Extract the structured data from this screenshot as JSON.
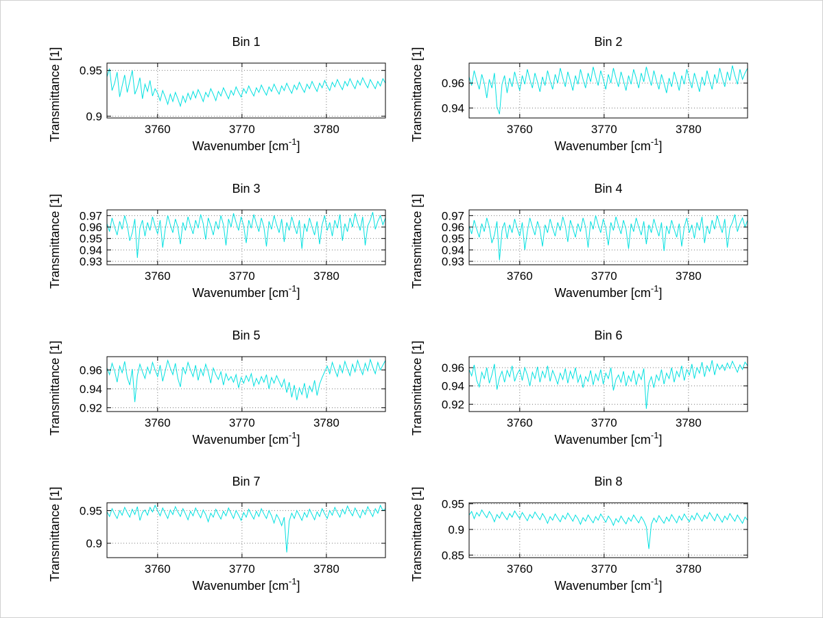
{
  "figure": {
    "background": "#ffffff",
    "border_color": "#cfcfcf"
  },
  "style": {
    "line_color": "#00E0E0",
    "grid_color": "#777777",
    "axis_color": "#000000"
  },
  "labels": {
    "xlabel_pre": "Wavenumber [cm",
    "xlabel_sup": "-1",
    "xlabel_post": "]",
    "ylabel": "Transmittance [1]"
  },
  "chart_data": [
    {
      "type": "line",
      "title": "Bin 1",
      "xlabel": "Wavenumber [cm⁻¹]",
      "ylabel": "Transmittance [1]",
      "xlim": [
        3754,
        3787
      ],
      "ylim": [
        0.898,
        0.958
      ],
      "xticks": [
        3760,
        3770,
        3780
      ],
      "yticks": [
        0.9,
        0.95
      ],
      "grid": true,
      "x_start": 3754,
      "x_step": 0.3,
      "values": [
        0.943,
        0.952,
        0.928,
        0.936,
        0.948,
        0.921,
        0.933,
        0.945,
        0.926,
        0.938,
        0.95,
        0.924,
        0.931,
        0.942,
        0.919,
        0.935,
        0.927,
        0.939,
        0.922,
        0.93,
        0.925,
        0.917,
        0.928,
        0.921,
        0.913,
        0.924,
        0.916,
        0.926,
        0.919,
        0.911,
        0.922,
        0.915,
        0.925,
        0.918,
        0.927,
        0.92,
        0.929,
        0.923,
        0.916,
        0.926,
        0.921,
        0.93,
        0.924,
        0.917,
        0.927,
        0.922,
        0.931,
        0.925,
        0.919,
        0.928,
        0.923,
        0.932,
        0.926,
        0.921,
        0.93,
        0.925,
        0.933,
        0.927,
        0.922,
        0.931,
        0.926,
        0.934,
        0.928,
        0.923,
        0.932,
        0.927,
        0.935,
        0.929,
        0.924,
        0.933,
        0.928,
        0.936,
        0.93,
        0.925,
        0.934,
        0.929,
        0.937,
        0.931,
        0.926,
        0.935,
        0.93,
        0.938,
        0.932,
        0.927,
        0.936,
        0.931,
        0.939,
        0.933,
        0.928,
        0.937,
        0.932,
        0.94,
        0.934,
        0.929,
        0.938,
        0.933,
        0.941,
        0.935,
        0.93,
        0.939,
        0.934,
        0.942,
        0.936,
        0.931,
        0.94,
        0.935,
        0.93,
        0.938,
        0.933,
        0.941,
        0.936
      ]
    },
    {
      "type": "line",
      "title": "Bin 2",
      "xlabel": "Wavenumber [cm⁻¹]",
      "ylabel": "Transmittance [1]",
      "xlim": [
        3754,
        3787
      ],
      "ylim": [
        0.932,
        0.976
      ],
      "xticks": [
        3760,
        3770,
        3780
      ],
      "yticks": [
        0.94,
        0.96
      ],
      "grid": true,
      "x_start": 3754,
      "x_step": 0.3,
      "values": [
        0.965,
        0.958,
        0.97,
        0.962,
        0.955,
        0.967,
        0.96,
        0.948,
        0.963,
        0.956,
        0.968,
        0.941,
        0.935,
        0.959,
        0.966,
        0.952,
        0.964,
        0.957,
        0.969,
        0.961,
        0.954,
        0.966,
        0.959,
        0.971,
        0.963,
        0.956,
        0.968,
        0.961,
        0.953,
        0.965,
        0.958,
        0.97,
        0.962,
        0.955,
        0.967,
        0.96,
        0.972,
        0.964,
        0.957,
        0.969,
        0.962,
        0.954,
        0.966,
        0.959,
        0.971,
        0.963,
        0.956,
        0.968,
        0.961,
        0.973,
        0.965,
        0.958,
        0.97,
        0.963,
        0.955,
        0.967,
        0.96,
        0.972,
        0.964,
        0.957,
        0.969,
        0.962,
        0.954,
        0.966,
        0.959,
        0.971,
        0.964,
        0.956,
        0.968,
        0.961,
        0.973,
        0.965,
        0.958,
        0.97,
        0.962,
        0.955,
        0.967,
        0.96,
        0.952,
        0.964,
        0.957,
        0.969,
        0.962,
        0.954,
        0.966,
        0.959,
        0.971,
        0.963,
        0.956,
        0.968,
        0.961,
        0.953,
        0.965,
        0.958,
        0.97,
        0.962,
        0.955,
        0.967,
        0.96,
        0.972,
        0.964,
        0.957,
        0.969,
        0.962,
        0.974,
        0.966,
        0.959,
        0.971,
        0.963,
        0.968,
        0.972
      ]
    },
    {
      "type": "line",
      "title": "Bin 3",
      "xlabel": "Wavenumber [cm⁻¹]",
      "ylabel": "Transmittance [1]",
      "xlim": [
        3754,
        3787
      ],
      "ylim": [
        0.927,
        0.975
      ],
      "xticks": [
        3760,
        3770,
        3780
      ],
      "yticks": [
        0.93,
        0.94,
        0.95,
        0.96,
        0.97
      ],
      "grid": true,
      "x_start": 3754,
      "x_step": 0.3,
      "values": [
        0.963,
        0.956,
        0.968,
        0.96,
        0.953,
        0.965,
        0.958,
        0.97,
        0.962,
        0.948,
        0.955,
        0.967,
        0.933,
        0.959,
        0.966,
        0.952,
        0.964,
        0.957,
        0.969,
        0.961,
        0.954,
        0.966,
        0.942,
        0.958,
        0.97,
        0.962,
        0.955,
        0.967,
        0.96,
        0.945,
        0.964,
        0.957,
        0.969,
        0.961,
        0.954,
        0.966,
        0.959,
        0.971,
        0.963,
        0.949,
        0.968,
        0.961,
        0.953,
        0.965,
        0.958,
        0.97,
        0.962,
        0.944,
        0.967,
        0.96,
        0.972,
        0.964,
        0.957,
        0.969,
        0.961,
        0.946,
        0.966,
        0.959,
        0.971,
        0.963,
        0.956,
        0.968,
        0.96,
        0.943,
        0.965,
        0.958,
        0.97,
        0.962,
        0.955,
        0.967,
        0.947,
        0.964,
        0.957,
        0.969,
        0.961,
        0.954,
        0.966,
        0.941,
        0.963,
        0.956,
        0.968,
        0.96,
        0.953,
        0.965,
        0.945,
        0.962,
        0.97,
        0.957,
        0.964,
        0.952,
        0.966,
        0.959,
        0.971,
        0.948,
        0.963,
        0.956,
        0.968,
        0.96,
        0.972,
        0.964,
        0.957,
        0.969,
        0.944,
        0.961,
        0.966,
        0.973,
        0.958,
        0.965,
        0.97,
        0.962,
        0.968
      ]
    },
    {
      "type": "line",
      "title": "Bin 4",
      "xlabel": "Wavenumber [cm⁻¹]",
      "ylabel": "Transmittance [1]",
      "xlim": [
        3754,
        3787
      ],
      "ylim": [
        0.927,
        0.975
      ],
      "xticks": [
        3760,
        3770,
        3780
      ],
      "yticks": [
        0.93,
        0.94,
        0.95,
        0.96,
        0.97
      ],
      "grid": true,
      "x_start": 3754,
      "x_step": 0.3,
      "values": [
        0.961,
        0.954,
        0.966,
        0.958,
        0.951,
        0.963,
        0.956,
        0.968,
        0.96,
        0.946,
        0.953,
        0.965,
        0.931,
        0.957,
        0.964,
        0.95,
        0.962,
        0.955,
        0.967,
        0.959,
        0.952,
        0.964,
        0.94,
        0.956,
        0.968,
        0.96,
        0.953,
        0.965,
        0.958,
        0.943,
        0.962,
        0.955,
        0.967,
        0.959,
        0.952,
        0.964,
        0.957,
        0.969,
        0.961,
        0.947,
        0.966,
        0.959,
        0.951,
        0.963,
        0.956,
        0.968,
        0.96,
        0.942,
        0.965,
        0.958,
        0.97,
        0.962,
        0.955,
        0.967,
        0.959,
        0.944,
        0.964,
        0.957,
        0.969,
        0.961,
        0.954,
        0.966,
        0.958,
        0.941,
        0.963,
        0.956,
        0.968,
        0.96,
        0.953,
        0.965,
        0.945,
        0.962,
        0.955,
        0.967,
        0.959,
        0.952,
        0.964,
        0.939,
        0.961,
        0.954,
        0.966,
        0.958,
        0.951,
        0.963,
        0.943,
        0.96,
        0.968,
        0.955,
        0.962,
        0.95,
        0.964,
        0.957,
        0.969,
        0.946,
        0.961,
        0.954,
        0.966,
        0.958,
        0.97,
        0.962,
        0.955,
        0.967,
        0.942,
        0.959,
        0.964,
        0.971,
        0.956,
        0.963,
        0.968,
        0.96,
        0.966
      ]
    },
    {
      "type": "line",
      "title": "Bin 5",
      "xlabel": "Wavenumber [cm⁻¹]",
      "ylabel": "Transmittance [1]",
      "xlim": [
        3754,
        3787
      ],
      "ylim": [
        0.916,
        0.974
      ],
      "xticks": [
        3760,
        3770,
        3780
      ],
      "yticks": [
        0.92,
        0.94,
        0.96
      ],
      "grid": true,
      "x_start": 3754,
      "x_step": 0.3,
      "values": [
        0.962,
        0.955,
        0.967,
        0.959,
        0.947,
        0.964,
        0.957,
        0.969,
        0.952,
        0.944,
        0.961,
        0.926,
        0.954,
        0.966,
        0.958,
        0.951,
        0.963,
        0.956,
        0.968,
        0.96,
        0.953,
        0.965,
        0.948,
        0.959,
        0.97,
        0.962,
        0.955,
        0.967,
        0.951,
        0.942,
        0.963,
        0.956,
        0.968,
        0.96,
        0.953,
        0.965,
        0.949,
        0.961,
        0.954,
        0.966,
        0.958,
        0.946,
        0.962,
        0.955,
        0.95,
        0.958,
        0.944,
        0.956,
        0.949,
        0.953,
        0.947,
        0.955,
        0.941,
        0.952,
        0.946,
        0.954,
        0.948,
        0.956,
        0.943,
        0.951,
        0.945,
        0.953,
        0.947,
        0.955,
        0.94,
        0.952,
        0.946,
        0.954,
        0.948,
        0.942,
        0.95,
        0.936,
        0.947,
        0.931,
        0.944,
        0.928,
        0.941,
        0.934,
        0.946,
        0.93,
        0.943,
        0.937,
        0.949,
        0.933,
        0.945,
        0.952,
        0.958,
        0.964,
        0.956,
        0.968,
        0.96,
        0.953,
        0.965,
        0.957,
        0.969,
        0.961,
        0.954,
        0.966,
        0.958,
        0.97,
        0.962,
        0.955,
        0.967,
        0.959,
        0.971,
        0.963,
        0.956,
        0.968,
        0.96,
        0.965,
        0.97
      ]
    },
    {
      "type": "line",
      "title": "Bin 6",
      "xlabel": "Wavenumber [cm⁻¹]",
      "ylabel": "Transmittance [1]",
      "xlim": [
        3754,
        3787
      ],
      "ylim": [
        0.912,
        0.972
      ],
      "xticks": [
        3760,
        3770,
        3780
      ],
      "yticks": [
        0.92,
        0.94,
        0.96
      ],
      "grid": true,
      "x_start": 3754,
      "x_step": 0.3,
      "values": [
        0.958,
        0.951,
        0.963,
        0.946,
        0.939,
        0.955,
        0.948,
        0.96,
        0.943,
        0.952,
        0.964,
        0.936,
        0.949,
        0.956,
        0.944,
        0.957,
        0.95,
        0.962,
        0.945,
        0.953,
        0.958,
        0.946,
        0.96,
        0.952,
        0.94,
        0.955,
        0.948,
        0.961,
        0.944,
        0.956,
        0.949,
        0.962,
        0.945,
        0.957,
        0.95,
        0.942,
        0.954,
        0.947,
        0.959,
        0.943,
        0.956,
        0.948,
        0.96,
        0.944,
        0.952,
        0.938,
        0.95,
        0.945,
        0.957,
        0.941,
        0.953,
        0.946,
        0.958,
        0.942,
        0.954,
        0.948,
        0.96,
        0.935,
        0.947,
        0.952,
        0.944,
        0.956,
        0.94,
        0.951,
        0.945,
        0.957,
        0.941,
        0.953,
        0.947,
        0.959,
        0.915,
        0.943,
        0.95,
        0.938,
        0.952,
        0.946,
        0.958,
        0.942,
        0.954,
        0.948,
        0.96,
        0.944,
        0.956,
        0.95,
        0.962,
        0.946,
        0.958,
        0.952,
        0.964,
        0.948,
        0.96,
        0.954,
        0.966,
        0.95,
        0.962,
        0.956,
        0.968,
        0.952,
        0.964,
        0.958,
        0.963,
        0.957,
        0.965,
        0.959,
        0.967,
        0.961,
        0.955,
        0.963,
        0.958,
        0.966,
        0.962
      ]
    },
    {
      "type": "line",
      "title": "Bin 7",
      "xlabel": "Wavenumber [cm⁻¹]",
      "ylabel": "Transmittance [1]",
      "xlim": [
        3754,
        3787
      ],
      "ylim": [
        0.878,
        0.962
      ],
      "xticks": [
        3760,
        3770,
        3780
      ],
      "yticks": [
        0.9,
        0.95
      ],
      "grid": true,
      "x_start": 3754,
      "x_step": 0.3,
      "values": [
        0.948,
        0.941,
        0.953,
        0.945,
        0.938,
        0.95,
        0.943,
        0.955,
        0.947,
        0.94,
        0.952,
        0.944,
        0.956,
        0.935,
        0.947,
        0.951,
        0.943,
        0.955,
        0.948,
        0.958,
        0.95,
        0.942,
        0.954,
        0.946,
        0.938,
        0.951,
        0.944,
        0.956,
        0.948,
        0.941,
        0.953,
        0.945,
        0.936,
        0.949,
        0.942,
        0.954,
        0.946,
        0.939,
        0.951,
        0.944,
        0.933,
        0.946,
        0.94,
        0.952,
        0.944,
        0.937,
        0.949,
        0.942,
        0.954,
        0.946,
        0.938,
        0.95,
        0.943,
        0.935,
        0.947,
        0.94,
        0.952,
        0.944,
        0.937,
        0.949,
        0.941,
        0.953,
        0.945,
        0.938,
        0.95,
        0.942,
        0.931,
        0.944,
        0.937,
        0.927,
        0.94,
        0.886,
        0.934,
        0.946,
        0.938,
        0.95,
        0.943,
        0.935,
        0.947,
        0.94,
        0.952,
        0.944,
        0.936,
        0.948,
        0.941,
        0.953,
        0.945,
        0.938,
        0.95,
        0.943,
        0.955,
        0.947,
        0.94,
        0.952,
        0.945,
        0.957,
        0.949,
        0.942,
        0.954,
        0.946,
        0.939,
        0.951,
        0.944,
        0.956,
        0.948,
        0.941,
        0.953,
        0.946,
        0.958,
        0.95,
        0.953
      ]
    },
    {
      "type": "line",
      "title": "Bin 8",
      "xlabel": "Wavenumber [cm⁻¹]",
      "ylabel": "Transmittance [1]",
      "xlim": [
        3754,
        3787
      ],
      "ylim": [
        0.845,
        0.952
      ],
      "xticks": [
        3760,
        3770,
        3780
      ],
      "yticks": [
        0.85,
        0.9,
        0.95
      ],
      "grid": true,
      "x_start": 3754,
      "x_step": 0.3,
      "values": [
        0.928,
        0.935,
        0.921,
        0.933,
        0.926,
        0.938,
        0.93,
        0.923,
        0.935,
        0.927,
        0.915,
        0.929,
        0.922,
        0.934,
        0.926,
        0.919,
        0.931,
        0.924,
        0.936,
        0.928,
        0.921,
        0.933,
        0.925,
        0.917,
        0.929,
        0.922,
        0.934,
        0.926,
        0.919,
        0.931,
        0.923,
        0.912,
        0.925,
        0.918,
        0.93,
        0.922,
        0.915,
        0.927,
        0.92,
        0.932,
        0.924,
        0.916,
        0.928,
        0.921,
        0.91,
        0.923,
        0.916,
        0.928,
        0.92,
        0.913,
        0.925,
        0.918,
        0.93,
        0.922,
        0.914,
        0.926,
        0.919,
        0.908,
        0.921,
        0.914,
        0.926,
        0.918,
        0.911,
        0.923,
        0.916,
        0.928,
        0.92,
        0.913,
        0.925,
        0.917,
        0.905,
        0.862,
        0.91,
        0.922,
        0.914,
        0.927,
        0.919,
        0.912,
        0.924,
        0.916,
        0.929,
        0.921,
        0.913,
        0.926,
        0.918,
        0.93,
        0.922,
        0.915,
        0.927,
        0.919,
        0.932,
        0.924,
        0.916,
        0.928,
        0.921,
        0.933,
        0.925,
        0.917,
        0.93,
        0.922,
        0.914,
        0.926,
        0.919,
        0.931,
        0.923,
        0.916,
        0.928,
        0.92,
        0.912,
        0.924,
        0.918
      ]
    }
  ]
}
